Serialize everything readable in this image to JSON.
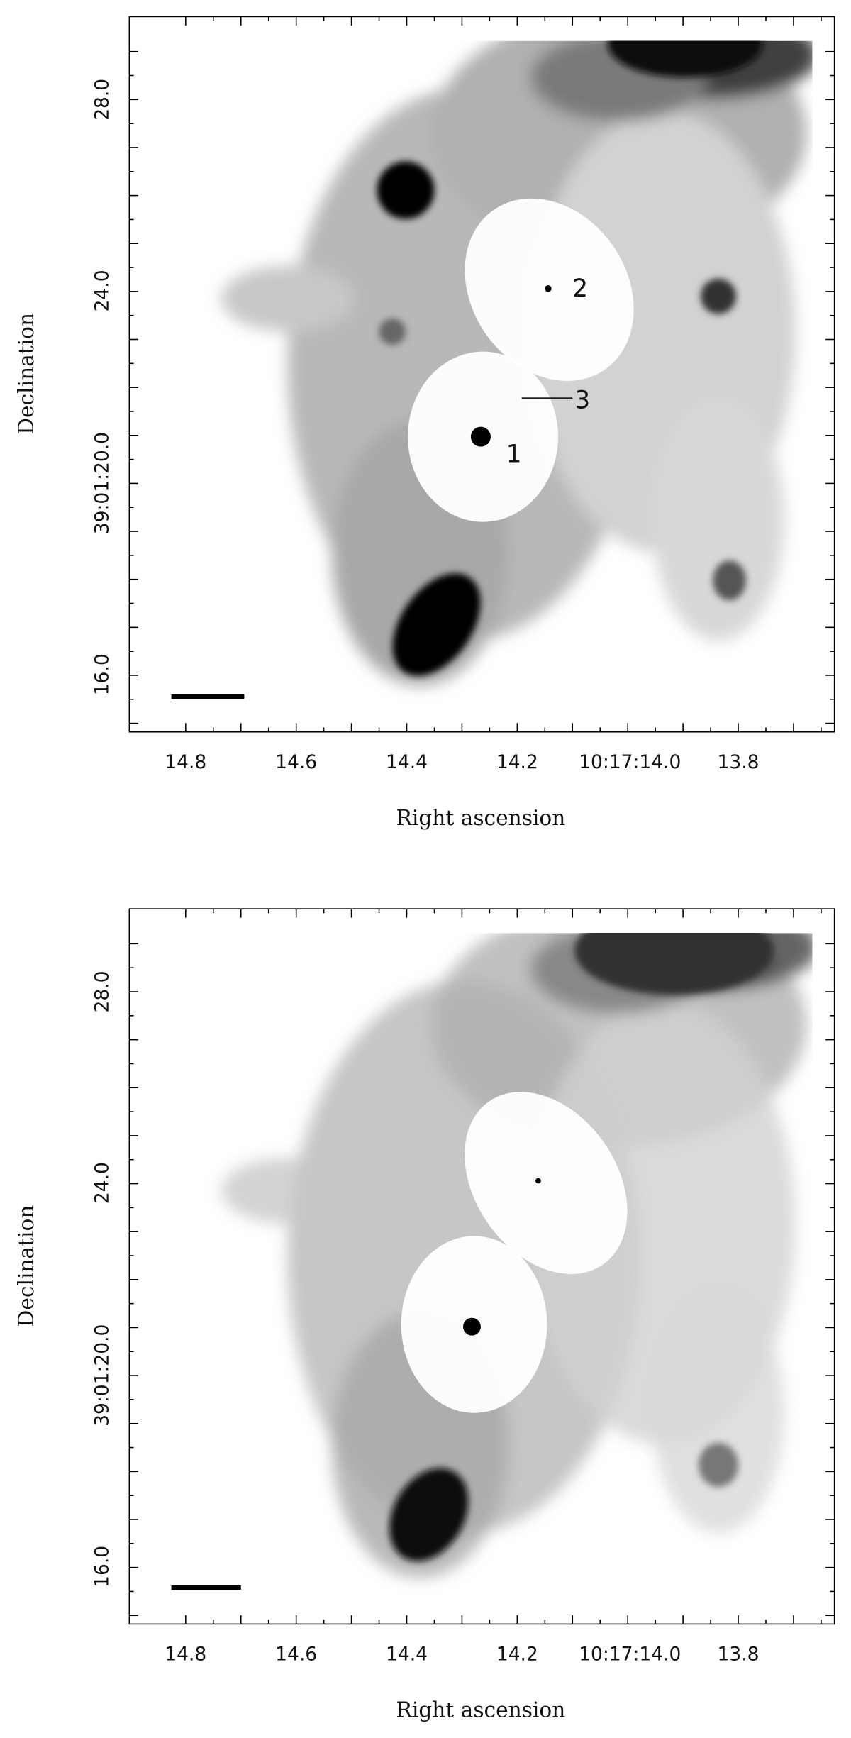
{
  "panels": [
    {
      "x_axis_label": "Right ascension",
      "y_axis_label": "Declination",
      "x_tick_labels": [
        "14.8",
        "14.6",
        "14.4",
        "14.2",
        "10:17:14.0",
        "13.8"
      ],
      "y_tick_labels": [
        "28.0",
        "24.0",
        "39:01:20.0",
        "16.0"
      ],
      "annotations": [
        "1",
        "2",
        "3"
      ]
    },
    {
      "x_axis_label": "Right ascension",
      "y_axis_label": "Declination",
      "x_tick_labels": [
        "14.8",
        "14.6",
        "14.4",
        "14.2",
        "10:17:14.0",
        "13.8"
      ],
      "y_tick_labels": [
        "28.0",
        "24.0",
        "39:01:20.0",
        "16.0"
      ]
    }
  ]
}
